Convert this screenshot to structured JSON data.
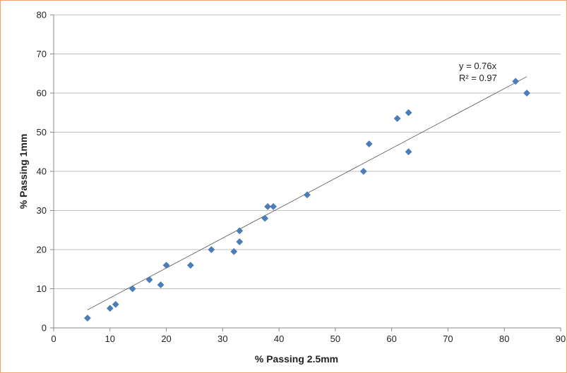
{
  "chart_data": {
    "type": "scatter",
    "title": "",
    "xlabel": "% Passing 2.5mm",
    "ylabel": "% Passing 1mm",
    "xlim": [
      0,
      90
    ],
    "ylim": [
      0,
      80
    ],
    "xticks": [
      0,
      10,
      20,
      30,
      40,
      50,
      60,
      70,
      80,
      90
    ],
    "yticks": [
      0,
      10,
      20,
      30,
      40,
      50,
      60,
      70,
      80
    ],
    "grid": "horizontal",
    "legend": "none",
    "marker_color": "#4a7ebb",
    "points": [
      {
        "x": 6,
        "y": 2.5
      },
      {
        "x": 10,
        "y": 5
      },
      {
        "x": 11,
        "y": 6
      },
      {
        "x": 14,
        "y": 10
      },
      {
        "x": 17,
        "y": 12.3
      },
      {
        "x": 19,
        "y": 11
      },
      {
        "x": 20,
        "y": 16
      },
      {
        "x": 24.3,
        "y": 16
      },
      {
        "x": 28,
        "y": 20
      },
      {
        "x": 32,
        "y": 19.5
      },
      {
        "x": 33,
        "y": 24.8
      },
      {
        "x": 33,
        "y": 22
      },
      {
        "x": 37.5,
        "y": 28
      },
      {
        "x": 38,
        "y": 31
      },
      {
        "x": 39,
        "y": 31
      },
      {
        "x": 45,
        "y": 34
      },
      {
        "x": 55,
        "y": 40
      },
      {
        "x": 56,
        "y": 47
      },
      {
        "x": 61,
        "y": 53.5
      },
      {
        "x": 63,
        "y": 55
      },
      {
        "x": 63,
        "y": 45
      },
      {
        "x": 82,
        "y": 63
      },
      {
        "x": 84,
        "y": 60
      }
    ],
    "trendline": {
      "x": [
        6,
        84
      ],
      "y": [
        4.6,
        64.2
      ],
      "color": "#555555"
    },
    "annotation": {
      "equation": "y = 0.76x",
      "r_squared": "R² = 0.97"
    }
  }
}
